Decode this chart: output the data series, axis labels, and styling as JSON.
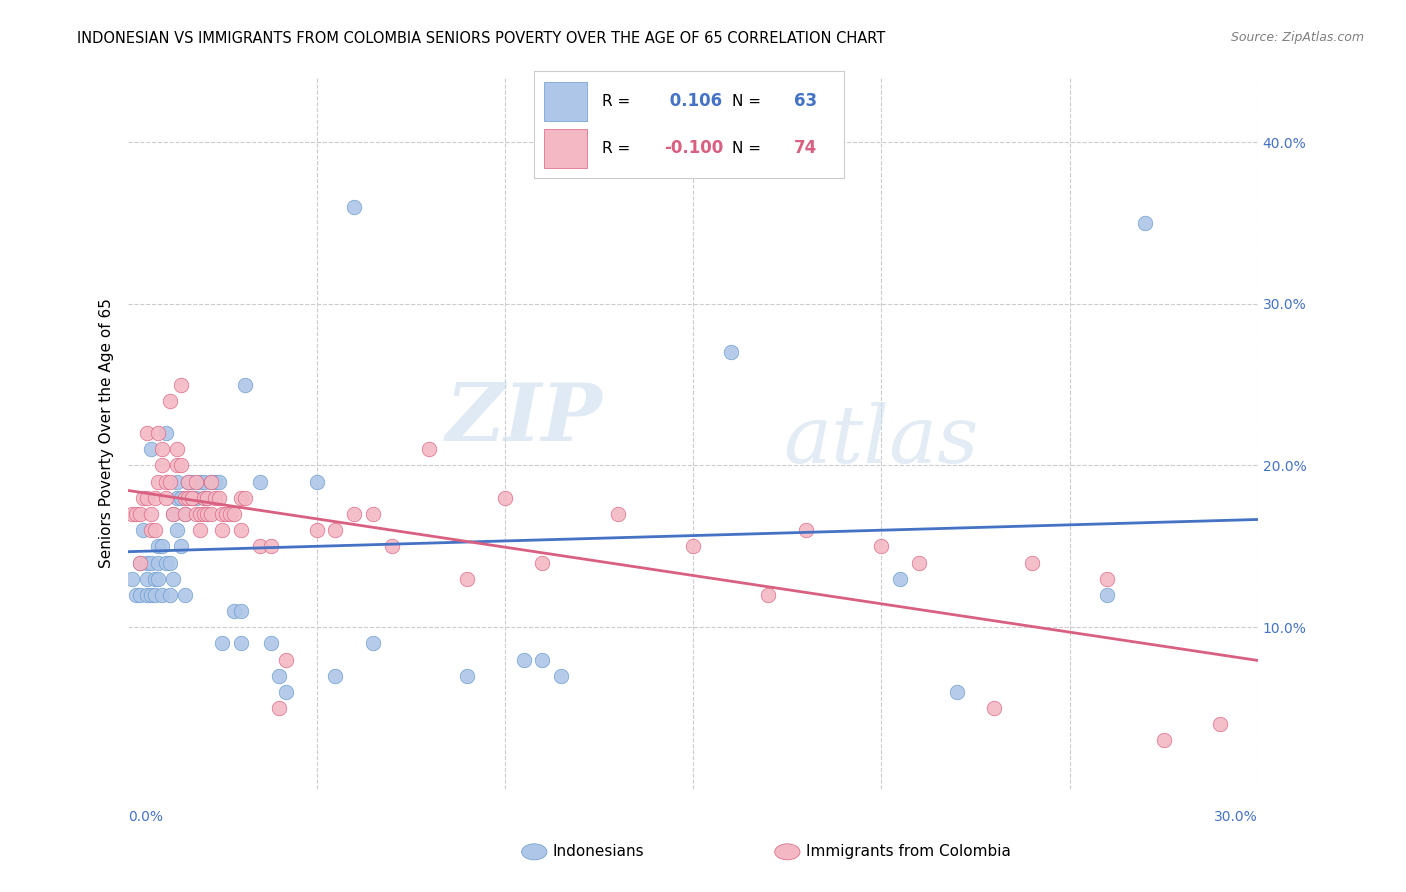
{
  "title": "INDONESIAN VS IMMIGRANTS FROM COLOMBIA SENIORS POVERTY OVER THE AGE OF 65 CORRELATION CHART",
  "source": "Source: ZipAtlas.com",
  "ylabel": "Seniors Poverty Over the Age of 65",
  "xmin": 0.0,
  "xmax": 0.3,
  "ymin": 0.0,
  "ymax": 0.44,
  "yticks": [
    0.1,
    0.2,
    0.3,
    0.4
  ],
  "ytick_labels": [
    "10.0%",
    "20.0%",
    "30.0%",
    "40.0%"
  ],
  "xticks": [
    0.0,
    0.05,
    0.1,
    0.15,
    0.2,
    0.25,
    0.3
  ],
  "series": [
    {
      "name": "Indonesians",
      "R": 0.106,
      "N": 63,
      "color": "#aec6e8",
      "edge_color": "#6699cc",
      "line_color": "#4472c4",
      "x": [
        0.001,
        0.002,
        0.003,
        0.003,
        0.004,
        0.005,
        0.005,
        0.005,
        0.006,
        0.006,
        0.006,
        0.007,
        0.007,
        0.008,
        0.008,
        0.008,
        0.009,
        0.009,
        0.01,
        0.01,
        0.011,
        0.011,
        0.012,
        0.012,
        0.013,
        0.013,
        0.013,
        0.014,
        0.014,
        0.015,
        0.015,
        0.016,
        0.017,
        0.018,
        0.019,
        0.02,
        0.02,
        0.021,
        0.022,
        0.023,
        0.024,
        0.025,
        0.028,
        0.03,
        0.03,
        0.031,
        0.035,
        0.038,
        0.04,
        0.042,
        0.05,
        0.055,
        0.06,
        0.065,
        0.09,
        0.105,
        0.11,
        0.115,
        0.16,
        0.205,
        0.22,
        0.26,
        0.27
      ],
      "y": [
        0.13,
        0.12,
        0.14,
        0.12,
        0.16,
        0.14,
        0.12,
        0.13,
        0.21,
        0.14,
        0.12,
        0.13,
        0.12,
        0.14,
        0.13,
        0.15,
        0.15,
        0.12,
        0.22,
        0.14,
        0.14,
        0.12,
        0.17,
        0.13,
        0.19,
        0.18,
        0.16,
        0.15,
        0.18,
        0.17,
        0.12,
        0.19,
        0.19,
        0.18,
        0.19,
        0.19,
        0.18,
        0.18,
        0.19,
        0.19,
        0.19,
        0.09,
        0.11,
        0.11,
        0.09,
        0.25,
        0.19,
        0.09,
        0.07,
        0.06,
        0.19,
        0.07,
        0.36,
        0.09,
        0.07,
        0.08,
        0.08,
        0.07,
        0.27,
        0.13,
        0.06,
        0.12,
        0.35
      ]
    },
    {
      "name": "Immigrants from Colombia",
      "R": -0.1,
      "N": 74,
      "color": "#f4b8c4",
      "edge_color": "#d96080",
      "line_color": "#d96080",
      "x": [
        0.001,
        0.002,
        0.003,
        0.003,
        0.004,
        0.005,
        0.005,
        0.006,
        0.006,
        0.007,
        0.007,
        0.008,
        0.008,
        0.009,
        0.009,
        0.01,
        0.01,
        0.011,
        0.011,
        0.012,
        0.013,
        0.013,
        0.014,
        0.014,
        0.015,
        0.015,
        0.016,
        0.016,
        0.017,
        0.017,
        0.018,
        0.018,
        0.019,
        0.019,
        0.02,
        0.02,
        0.021,
        0.021,
        0.022,
        0.022,
        0.023,
        0.024,
        0.025,
        0.025,
        0.026,
        0.027,
        0.028,
        0.03,
        0.03,
        0.031,
        0.035,
        0.038,
        0.04,
        0.042,
        0.05,
        0.055,
        0.06,
        0.065,
        0.07,
        0.08,
        0.09,
        0.1,
        0.11,
        0.13,
        0.15,
        0.17,
        0.18,
        0.2,
        0.21,
        0.23,
        0.24,
        0.26,
        0.275,
        0.29
      ],
      "y": [
        0.17,
        0.17,
        0.14,
        0.17,
        0.18,
        0.18,
        0.22,
        0.16,
        0.17,
        0.18,
        0.16,
        0.22,
        0.19,
        0.2,
        0.21,
        0.18,
        0.19,
        0.24,
        0.19,
        0.17,
        0.21,
        0.2,
        0.2,
        0.25,
        0.18,
        0.17,
        0.18,
        0.19,
        0.18,
        0.18,
        0.19,
        0.17,
        0.16,
        0.17,
        0.18,
        0.17,
        0.17,
        0.18,
        0.19,
        0.17,
        0.18,
        0.18,
        0.17,
        0.16,
        0.17,
        0.17,
        0.17,
        0.16,
        0.18,
        0.18,
        0.15,
        0.15,
        0.05,
        0.08,
        0.16,
        0.16,
        0.17,
        0.17,
        0.15,
        0.21,
        0.13,
        0.18,
        0.14,
        0.17,
        0.15,
        0.12,
        0.16,
        0.15,
        0.14,
        0.05,
        0.14,
        0.13,
        0.03,
        0.04
      ]
    }
  ],
  "watermark_zip": "ZIP",
  "watermark_atlas": "atlas",
  "background_color": "#ffffff",
  "grid_color": "#cccccc"
}
